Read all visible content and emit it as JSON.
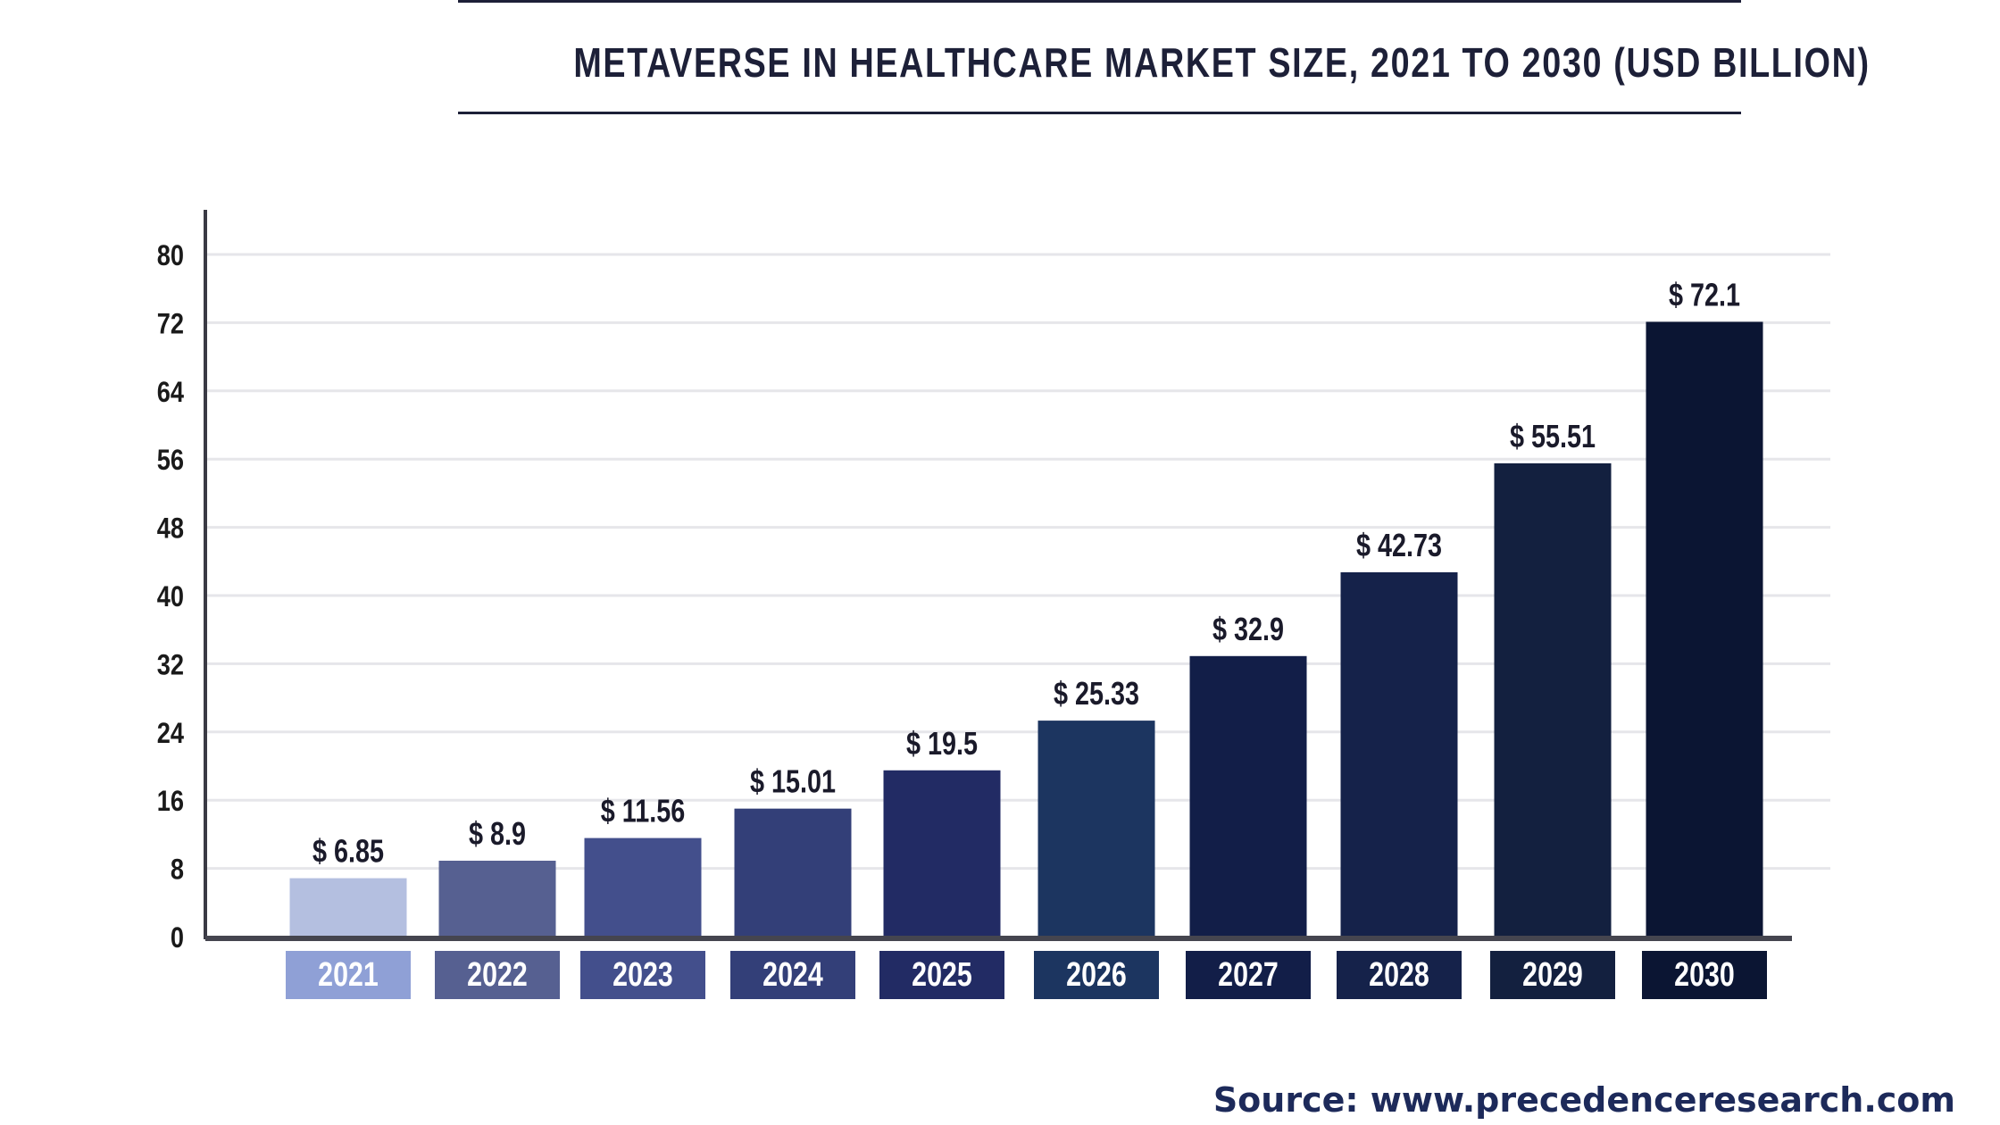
{
  "chart_data": {
    "type": "bar",
    "title": "METAVERSE IN HEALTHCARE MARKET SIZE, 2021 TO 2030 (USD BILLION)",
    "categories": [
      "2021",
      "2022",
      "2023",
      "2024",
      "2025",
      "2026",
      "2027",
      "2028",
      "2029",
      "2030"
    ],
    "values": [
      6.85,
      8.9,
      11.56,
      15.01,
      19.5,
      25.33,
      32.9,
      42.73,
      55.51,
      72.1
    ],
    "data_labels": [
      "$ 6.85",
      "$ 8.9",
      "$ 11.56",
      "$ 15.01",
      "$ 19.5",
      "$ 25.33",
      "$ 32.9",
      "$ 42.73",
      "$ 55.51",
      "$ 72.1"
    ],
    "bar_colors": [
      "#b4bfe0",
      "#566091",
      "#434f8c",
      "#333f78",
      "#222b64",
      "#1c3560",
      "#121e48",
      "#15224a",
      "#13203f",
      "#0b1533"
    ],
    "label_box_colors": [
      "#8fa0d6",
      "#566091",
      "#434f8c",
      "#333f78",
      "#222b64",
      "#1c3560",
      "#121e48",
      "#15224a",
      "#13203f",
      "#0b1533"
    ],
    "yticks": [
      0,
      8,
      16,
      24,
      32,
      40,
      48,
      56,
      64,
      72,
      80
    ],
    "ylim": [
      0,
      80
    ],
    "xlabel": "",
    "ylabel": "",
    "grid": true,
    "legend": "none"
  },
  "source": "Source: www.precedenceresearch.com"
}
